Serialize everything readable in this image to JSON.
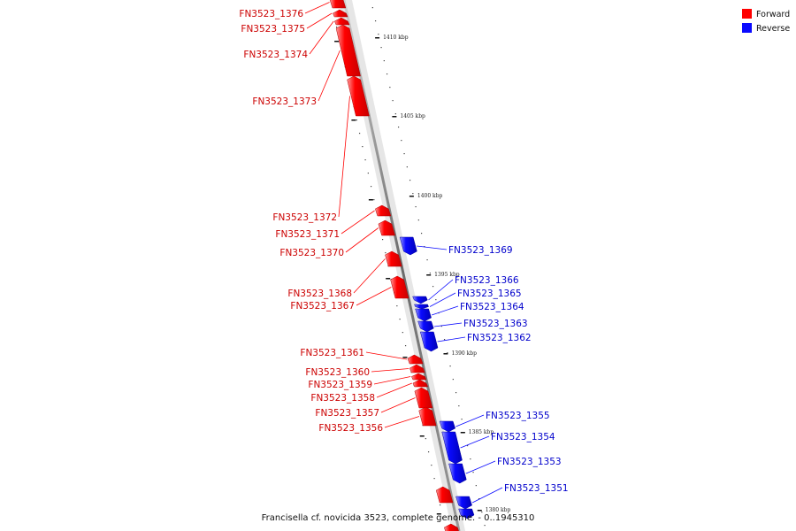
{
  "legend": {
    "forward": {
      "label": "Forward",
      "color": "#ff0000"
    },
    "reverse": {
      "label": "Reverse",
      "color": "#0a0aff"
    }
  },
  "caption": "Francisella cf. novicida 3523, complete genome. - 0..1945310",
  "ticks": [
    "1410 kbp",
    "1405 kbp",
    "1400 kbp",
    "1395 kbp",
    "1390 kbp",
    "1385 kbp",
    "1380 kbp"
  ],
  "genes": [
    {
      "name": "FN3523_1376",
      "strand": "forward"
    },
    {
      "name": "FN3523_1375",
      "strand": "forward"
    },
    {
      "name": "FN3523_1374",
      "strand": "forward"
    },
    {
      "name": "FN3523_1373",
      "strand": "forward"
    },
    {
      "name": "FN3523_1372",
      "strand": "forward"
    },
    {
      "name": "FN3523_1371",
      "strand": "forward"
    },
    {
      "name": "FN3523_1370",
      "strand": "forward"
    },
    {
      "name": "FN3523_1369",
      "strand": "reverse"
    },
    {
      "name": "FN3523_1368",
      "strand": "forward"
    },
    {
      "name": "FN3523_1367",
      "strand": "forward"
    },
    {
      "name": "FN3523_1366",
      "strand": "reverse"
    },
    {
      "name": "FN3523_1365",
      "strand": "reverse"
    },
    {
      "name": "FN3523_1364",
      "strand": "reverse"
    },
    {
      "name": "FN3523_1363",
      "strand": "reverse"
    },
    {
      "name": "FN3523_1362",
      "strand": "reverse"
    },
    {
      "name": "FN3523_1361",
      "strand": "forward"
    },
    {
      "name": "FN3523_1360",
      "strand": "forward"
    },
    {
      "name": "FN3523_1359",
      "strand": "forward"
    },
    {
      "name": "FN3523_1358",
      "strand": "forward"
    },
    {
      "name": "FN3523_1357",
      "strand": "forward"
    },
    {
      "name": "FN3523_1356",
      "strand": "forward"
    },
    {
      "name": "FN3523_1355",
      "strand": "reverse"
    },
    {
      "name": "FN3523_1354",
      "strand": "reverse"
    },
    {
      "name": "FN3523_1353",
      "strand": "reverse"
    },
    {
      "name": "FN3523_1351",
      "strand": "reverse"
    }
  ]
}
